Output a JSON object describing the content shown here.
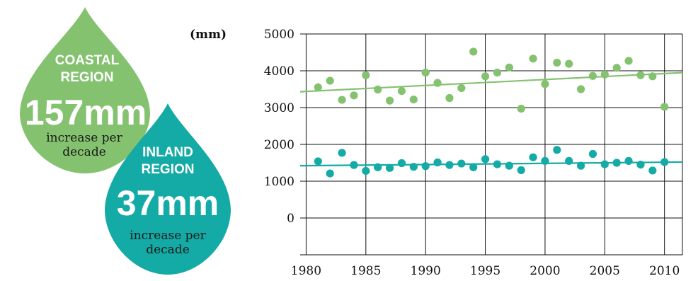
{
  "drops": {
    "coastal": {
      "line1": "COASTAL",
      "line2": "REGION",
      "value": "157mm",
      "caption1": "increase per",
      "caption2": "decade",
      "color": "#84c270"
    },
    "inland": {
      "line1": "INLAND",
      "line2": "REGION",
      "value": "37mm",
      "caption1": "increase per",
      "caption2": "decade",
      "color": "#14aaa6"
    }
  },
  "chart_data": {
    "type": "scatter",
    "ylabel": "(mm)",
    "xlim": [
      1979.5,
      2011.5
    ],
    "ylim": [
      -1000,
      5000
    ],
    "xticks": [
      1980,
      1985,
      1990,
      1995,
      2000,
      2005,
      2010
    ],
    "yticks": [
      0,
      1000,
      2000,
      3000,
      4000,
      5000
    ],
    "grid": true,
    "series": [
      {
        "color": "#84c270",
        "x": [
          1981,
          1982,
          1983,
          1984,
          1985,
          1986,
          1987,
          1988,
          1989,
          1990,
          1991,
          1992,
          1993,
          1994,
          1995,
          1996,
          1997,
          1998,
          1999,
          2000,
          2001,
          2002,
          2003,
          2004,
          2005,
          2006,
          2007,
          2008,
          2009,
          2010
        ],
        "y": [
          3550,
          3730,
          3210,
          3330,
          3880,
          3490,
          3190,
          3450,
          3220,
          3950,
          3670,
          3260,
          3530,
          4520,
          3850,
          3950,
          4090,
          2970,
          4330,
          3640,
          4220,
          4190,
          3500,
          3860,
          3900,
          4080,
          4270,
          3880,
          3850,
          3020
        ],
        "trend": [
          3430,
          3950
        ]
      },
      {
        "color": "#14aaa6",
        "x": [
          1981,
          1982,
          1983,
          1984,
          1985,
          1986,
          1987,
          1988,
          1989,
          1990,
          1991,
          1992,
          1993,
          1994,
          1995,
          1996,
          1997,
          1998,
          1999,
          2000,
          2001,
          2002,
          2003,
          2004,
          2005,
          2006,
          2007,
          2008,
          2009,
          2010
        ],
        "y": [
          1540,
          1210,
          1770,
          1440,
          1280,
          1380,
          1360,
          1490,
          1390,
          1410,
          1510,
          1440,
          1480,
          1380,
          1600,
          1460,
          1420,
          1300,
          1650,
          1550,
          1850,
          1550,
          1420,
          1740,
          1460,
          1500,
          1550,
          1450,
          1290,
          1520
        ],
        "trend": [
          1420,
          1520
        ]
      }
    ]
  }
}
